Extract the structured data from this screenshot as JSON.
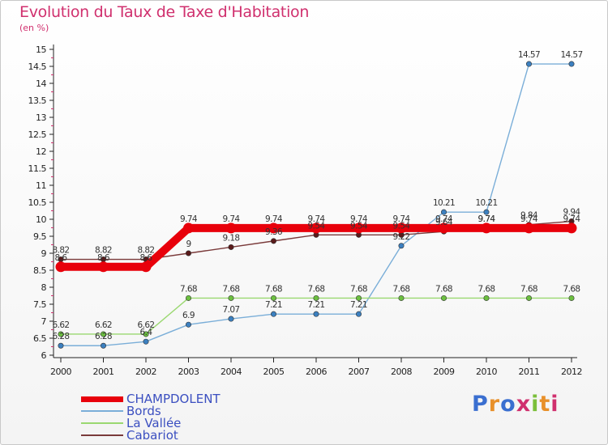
{
  "header": {
    "title": "Evolution du Taux de Taxe d'Habitation",
    "unit": "(en %)"
  },
  "logo": {
    "text": "Proxiti",
    "colors": [
      "#3a6fd0",
      "#e8902a",
      "#3a6fd0",
      "#d0306e",
      "#7bbf3a",
      "#e8902a",
      "#d0306e"
    ]
  },
  "chart_data": {
    "type": "line",
    "title": "Evolution du Taux de Taxe d'Habitation",
    "ylabel": "(en %)",
    "xlabel": "",
    "categories": [
      "2000",
      "2001",
      "2002",
      "2003",
      "2004",
      "2005",
      "2006",
      "2007",
      "2008",
      "2009",
      "2010",
      "2011",
      "2012"
    ],
    "ylim": [
      6,
      15
    ],
    "yticks": [
      6,
      6.5,
      7,
      7.5,
      8,
      8.5,
      9,
      9.5,
      10,
      10.5,
      11,
      11.5,
      12,
      12.5,
      13,
      13.5,
      14,
      14.5,
      15
    ],
    "ytick_labels": [
      "6",
      "6.5",
      "7",
      "7.5",
      "8",
      "8.5",
      "9",
      "9.5",
      "10",
      "10.5",
      "11",
      "11.5",
      "12",
      "12.5",
      "13",
      "13.5",
      "14",
      "14.5",
      "15"
    ],
    "grid": false,
    "legend_position": "bottom-left",
    "series": [
      {
        "name": "CHAMPDOLENT",
        "color": "#e8000b",
        "marker_color": "#e8000b",
        "weight": "thick",
        "values": [
          8.6,
          8.6,
          8.6,
          9.74,
          9.74,
          9.74,
          9.74,
          9.74,
          9.74,
          9.74,
          9.74,
          9.74,
          9.74
        ],
        "labels": [
          "8.6",
          "8.6",
          "8.6",
          "9.74",
          "9.74",
          "9.74",
          "9.74",
          "9.74",
          "9.74",
          "9.74",
          "9.74",
          "9.74",
          "9.74"
        ]
      },
      {
        "name": "Bords",
        "color": "#7aaed8",
        "marker_color": "#3c80c0",
        "weight": "thin",
        "values": [
          6.28,
          6.28,
          6.4,
          6.9,
          7.07,
          7.21,
          7.21,
          7.21,
          9.22,
          10.21,
          10.21,
          14.57,
          14.57
        ],
        "labels": [
          "6.28",
          "6.28",
          "6.4",
          "6.9",
          "7.07",
          "7.21",
          "7.21",
          "7.21",
          "9.22",
          "10.21",
          "10.21",
          "14.57",
          "14.57"
        ]
      },
      {
        "name": "La Vallée",
        "color": "#9ad870",
        "marker_color": "#6cc040",
        "weight": "thin",
        "values": [
          6.62,
          6.62,
          6.62,
          7.68,
          7.68,
          7.68,
          7.68,
          7.68,
          7.68,
          7.68,
          7.68,
          7.68,
          7.68
        ],
        "labels": [
          "6.62",
          "6.62",
          "6.62",
          "7.68",
          "7.68",
          "7.68",
          "7.68",
          "7.68",
          "7.68",
          "7.68",
          "7.68",
          "7.68",
          "7.68"
        ]
      },
      {
        "name": "Cabariot",
        "color": "#7a3a3a",
        "marker_color": "#5a1a1a",
        "weight": "thin",
        "values": [
          8.82,
          8.82,
          8.82,
          9,
          9.18,
          9.36,
          9.54,
          9.54,
          9.54,
          9.64,
          9.74,
          9.84,
          9.94
        ],
        "labels": [
          "8.82",
          "8.82",
          "8.82",
          "9",
          "9.18",
          "9.36",
          "9.54",
          "9.54",
          "9.54",
          "9.64",
          "9.74",
          "9.84",
          "9.94"
        ]
      }
    ]
  }
}
